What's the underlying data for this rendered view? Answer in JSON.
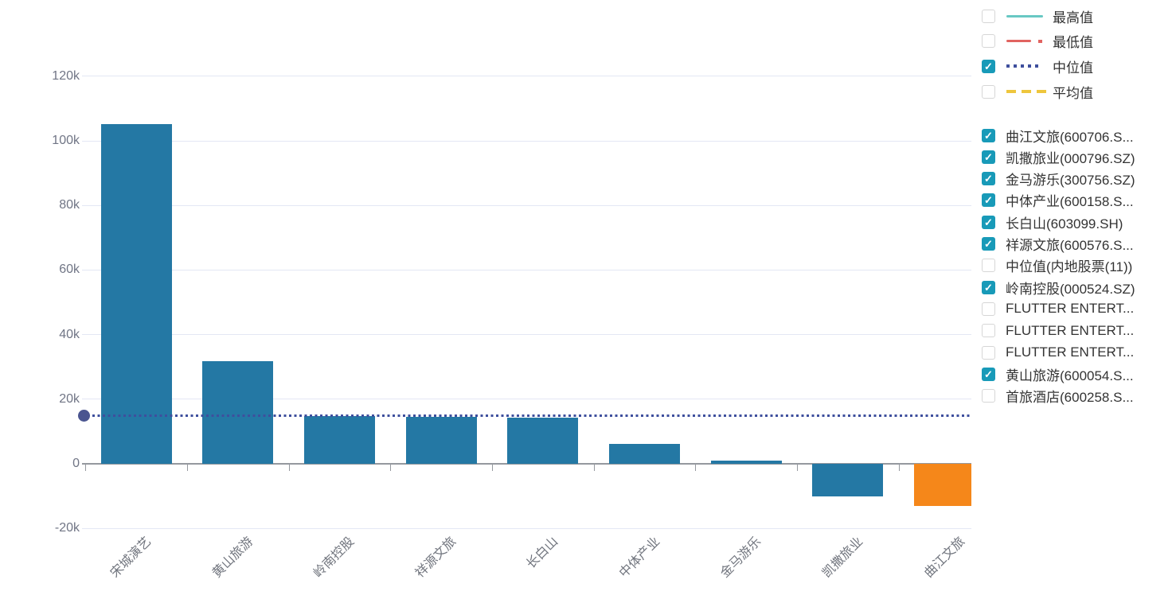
{
  "colors": {
    "bar_blue": "#2478a4",
    "bar_highlight_orange": "#f5871a",
    "gridline": "#e3e7f4",
    "zero_axis": "#95999f",
    "y_tick_label": "#707585",
    "x_cat_label": "#71757e",
    "checkbox_checked": "#189ab8",
    "legend_text": "#333333",
    "median_line": "#3e4f9d",
    "median_dot": "#4a5590"
  },
  "chart_data": {
    "type": "bar",
    "title": "",
    "xlabel": "",
    "ylabel": "",
    "categories": [
      "宋城演艺",
      "黄山旅游",
      "岭南控股",
      "祥源文旅",
      "长白山",
      "中体产业",
      "金马游乐",
      "凯撒旅业",
      "曲江文旅"
    ],
    "values": [
      105200,
      31800,
      14800,
      14600,
      14300,
      6200,
      1000,
      -10100,
      -13100
    ],
    "highlight_index": 8,
    "yticks": [
      120000,
      100000,
      80000,
      60000,
      40000,
      20000,
      0,
      -20000
    ],
    "ytick_labels": [
      "120k",
      "100k",
      "80k",
      "60k",
      "40k",
      "20k",
      "0",
      "-20k"
    ],
    "ylim": [
      -20000,
      120000
    ],
    "grid": true,
    "legend_position": "right",
    "median_line": {
      "label": "中位值",
      "value": 14800,
      "style": "dotted",
      "marker": "filled-dot-at-left"
    }
  },
  "legend_stats": {
    "items": [
      {
        "label": "最高值",
        "checked": false,
        "color": "#68c8c3",
        "line_style": "solid"
      },
      {
        "label": "最低值",
        "checked": false,
        "color": "#e16360",
        "line_style": "dash-dot"
      },
      {
        "label": "中位值",
        "checked": true,
        "color": "#3e4f9d",
        "line_style": "dotted"
      },
      {
        "label": "平均值",
        "checked": false,
        "color": "#eec63d",
        "line_style": "dashed"
      }
    ]
  },
  "legend_series": {
    "items": [
      {
        "label": "曲江文旅(600706.S...",
        "checked": true
      },
      {
        "label": "凯撒旅业(000796.SZ)",
        "checked": true
      },
      {
        "label": "金马游乐(300756.SZ)",
        "checked": true
      },
      {
        "label": "中体产业(600158.S...",
        "checked": true
      },
      {
        "label": "长白山(603099.SH)",
        "checked": true
      },
      {
        "label": "祥源文旅(600576.S...",
        "checked": true
      },
      {
        "label": "中位值(内地股票(11))",
        "checked": false
      },
      {
        "label": "岭南控股(000524.SZ)",
        "checked": true
      },
      {
        "label": "FLUTTER ENTERT...",
        "checked": false
      },
      {
        "label": "FLUTTER ENTERT...",
        "checked": false
      },
      {
        "label": "FLUTTER ENTERT...",
        "checked": false
      },
      {
        "label": "黄山旅游(600054.S...",
        "checked": true
      },
      {
        "label": "首旅酒店(600258.S...",
        "checked": false
      }
    ]
  },
  "icons": {
    "checkbox_check": "✓"
  }
}
